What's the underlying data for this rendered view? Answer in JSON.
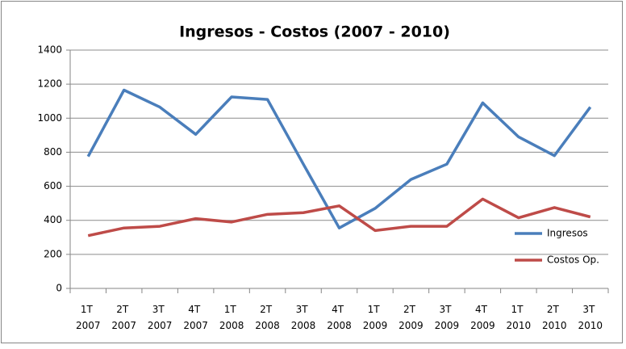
{
  "chart_data": {
    "type": "line",
    "title": "Ingresos - Costos (2007 - 2010)",
    "categories": [
      "1T 2007",
      "2T 2007",
      "3T 2007",
      "4T 2007",
      "1T 2008",
      "2T 2008",
      "3T 2008",
      "4T 2008",
      "1T 2009",
      "2T 2009",
      "3T 2009",
      "4T 2009",
      "1T 2010",
      "2T 2010",
      "3T 2010"
    ],
    "series": [
      {
        "name": "Ingresos",
        "color": "#4a7ebb",
        "values": [
          775,
          1165,
          1065,
          905,
          1125,
          1110,
          730,
          355,
          470,
          640,
          730,
          1090,
          890,
          780,
          1065
        ]
      },
      {
        "name": "Costos Op.",
        "color": "#be4b48",
        "values": [
          310,
          355,
          365,
          410,
          390,
          435,
          445,
          485,
          340,
          365,
          365,
          525,
          415,
          475,
          420
        ]
      }
    ],
    "ylim": [
      0,
      1400
    ],
    "yticks": [
      0,
      200,
      400,
      600,
      800,
      1000,
      1200,
      1400
    ],
    "grid": true,
    "legend": "right"
  }
}
